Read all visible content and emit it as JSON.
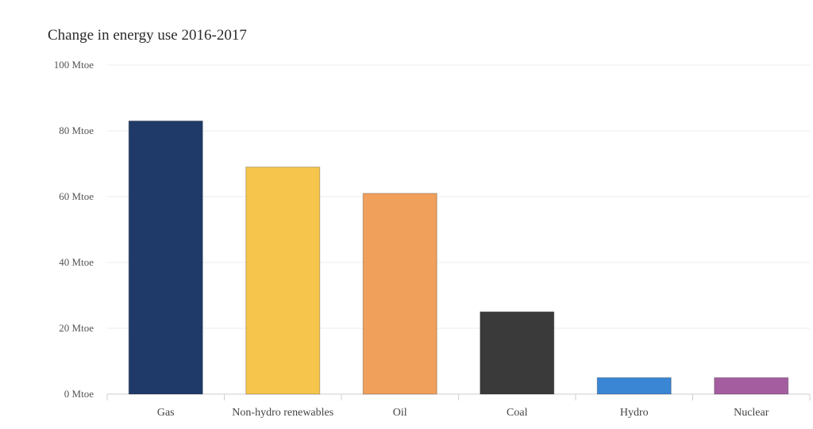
{
  "chart_data": {
    "type": "bar",
    "title": "Change in energy use 2016-2017",
    "xlabel": "",
    "ylabel": "",
    "categories": [
      "Gas",
      "Non-hydro renewables",
      "Oil",
      "Coal",
      "Hydro",
      "Nuclear"
    ],
    "values": [
      83,
      69,
      61,
      25,
      5,
      5
    ],
    "colors": [
      "#1f3a68",
      "#f6c54c",
      "#f0a05b",
      "#3a3a3a",
      "#3a86d4",
      "#a45ea0"
    ],
    "ylim": [
      0,
      100
    ],
    "yticks": [
      0,
      20,
      40,
      60,
      80,
      100
    ],
    "ytick_labels": [
      "0 Mtoe",
      "20 Mtoe",
      "40 Mtoe",
      "60 Mtoe",
      "80 Mtoe",
      "100 Mtoe"
    ],
    "grid": true,
    "legend": "none"
  }
}
